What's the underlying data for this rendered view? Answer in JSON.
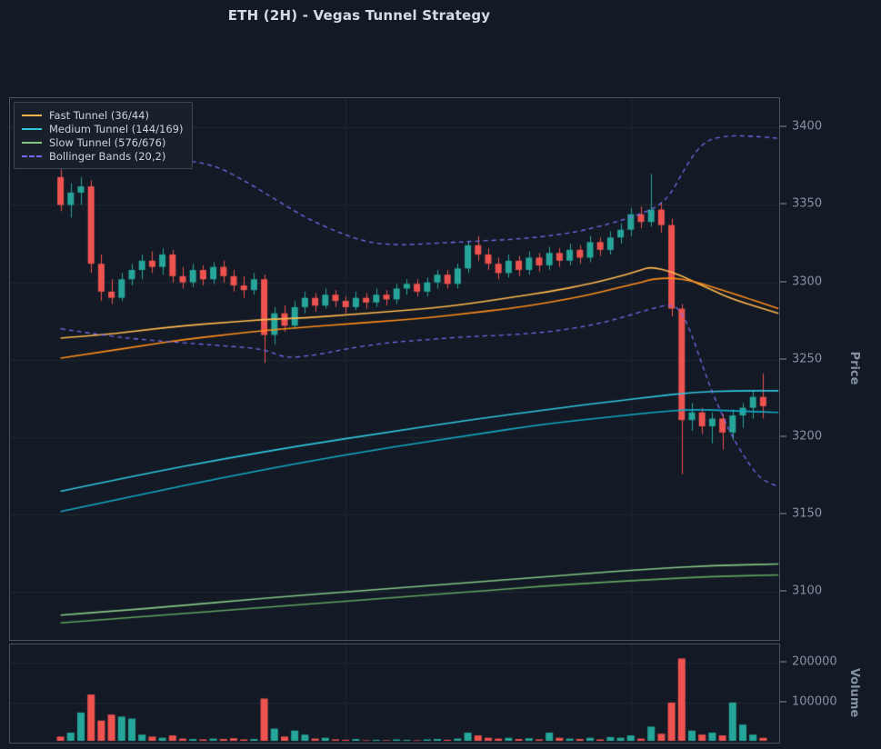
{
  "title": "ETH (2H) - Vegas Tunnel Strategy",
  "colors": {
    "bg": "#131a25",
    "panel_border": "#4a5260",
    "grid": "#212937",
    "title": "#d6dce6",
    "tick": "#8590a3",
    "legend_bg": "#1a2029",
    "legend_border": "#3e4654",
    "legend_text": "#ccd2de"
  },
  "legend": {
    "items": [
      {
        "label": "Fast Tunnel (36/44)",
        "color": "#ffb74d",
        "style": "solid"
      },
      {
        "label": "Medium Tunnel (144/169)",
        "color": "#2fc5de",
        "style": "solid"
      },
      {
        "label": "Slow Tunnel (576/676)",
        "color": "#85c785",
        "style": "solid"
      },
      {
        "label": "Bollinger Bands (20,2)",
        "color": "#7b68ee",
        "style": "dashed"
      }
    ]
  },
  "price_axis": {
    "label": "Price",
    "tick_labels": [
      "3400",
      "3350",
      "3300",
      "3250",
      "3200",
      "3150",
      "3100"
    ],
    "tick_values": [
      3400,
      3350,
      3300,
      3250,
      3200,
      3150,
      3100
    ]
  },
  "volume_axis": {
    "label": "Volume",
    "tick_labels": [
      "200000",
      "100000"
    ],
    "tick_values": [
      200000,
      100000
    ]
  },
  "chart_data": {
    "type": "candlestick",
    "title": "ETH (2H) - Vegas Tunnel Strategy",
    "symbol": "ETH",
    "interval": "2H",
    "ylabel": "Price",
    "ylabel_volume": "Volume",
    "price_ylim": [
      3069,
      3419
    ],
    "volume_ylim": [
      0,
      245000
    ],
    "up_color": "#26a69a",
    "down_color": "#ef5350",
    "vertical_grid_indices": [
      28,
      56
    ],
    "candles": {
      "open": [
        3368,
        3350,
        3358,
        3362,
        3312,
        3294,
        3290,
        3302,
        3308,
        3314,
        3310,
        3318,
        3304,
        3300,
        3308,
        3302,
        3310,
        3304,
        3298,
        3295,
        3302,
        3266,
        3280,
        3272,
        3284,
        3290,
        3285,
        3292,
        3288,
        3284,
        3290,
        3287,
        3292,
        3289,
        3296,
        3299,
        3294,
        3300,
        3305,
        3299,
        3309,
        3324,
        3318,
        3312,
        3306,
        3314,
        3308,
        3316,
        3311,
        3319,
        3314,
        3321,
        3316,
        3326,
        3321,
        3329,
        3334,
        3344,
        3339,
        3347,
        3337,
        3283,
        3211,
        3216,
        3207,
        3212,
        3203,
        3214,
        3219,
        3226
      ],
      "high": [
        3373,
        3364,
        3368,
        3366,
        3318,
        3302,
        3306,
        3312,
        3318,
        3320,
        3322,
        3321,
        3310,
        3312,
        3311,
        3313,
        3314,
        3308,
        3304,
        3306,
        3305,
        3284,
        3285,
        3288,
        3294,
        3293,
        3296,
        3295,
        3291,
        3294,
        3293,
        3296,
        3295,
        3299,
        3302,
        3302,
        3303,
        3308,
        3308,
        3312,
        3327,
        3330,
        3322,
        3316,
        3318,
        3317,
        3320,
        3319,
        3323,
        3322,
        3325,
        3324,
        3330,
        3329,
        3333,
        3338,
        3348,
        3349,
        3370,
        3352,
        3341,
        3286,
        3222,
        3219,
        3216,
        3215,
        3218,
        3222,
        3230,
        3241
      ],
      "low": [
        3346,
        3342,
        3350,
        3306,
        3288,
        3286,
        3288,
        3298,
        3302,
        3306,
        3305,
        3300,
        3296,
        3297,
        3298,
        3299,
        3300,
        3294,
        3290,
        3292,
        3248,
        3260,
        3268,
        3270,
        3280,
        3281,
        3283,
        3284,
        3280,
        3282,
        3283,
        3284,
        3285,
        3286,
        3292,
        3291,
        3291,
        3296,
        3296,
        3296,
        3306,
        3314,
        3308,
        3302,
        3303,
        3304,
        3305,
        3307,
        3308,
        3310,
        3311,
        3312,
        3313,
        3317,
        3318,
        3325,
        3330,
        3335,
        3336,
        3332,
        3278,
        3176,
        3204,
        3202,
        3196,
        3192,
        3198,
        3206,
        3212,
        3212
      ],
      "close": [
        3350,
        3358,
        3362,
        3312,
        3294,
        3290,
        3302,
        3308,
        3314,
        3310,
        3318,
        3304,
        3300,
        3308,
        3302,
        3310,
        3304,
        3298,
        3295,
        3302,
        3266,
        3280,
        3272,
        3284,
        3290,
        3285,
        3292,
        3288,
        3284,
        3290,
        3287,
        3292,
        3289,
        3296,
        3299,
        3294,
        3300,
        3305,
        3299,
        3309,
        3324,
        3318,
        3312,
        3306,
        3314,
        3308,
        3316,
        3311,
        3319,
        3314,
        3321,
        3316,
        3326,
        3321,
        3329,
        3334,
        3344,
        3339,
        3347,
        3337,
        3283,
        3211,
        3216,
        3207,
        3212,
        3203,
        3214,
        3219,
        3226,
        3220
      ],
      "volume": [
        15000,
        25000,
        75000,
        120000,
        55000,
        70000,
        65000,
        60000,
        20000,
        15000,
        12000,
        18000,
        10000,
        9000,
        8000,
        10000,
        9000,
        11000,
        8000,
        9000,
        110000,
        35000,
        15000,
        30000,
        20000,
        10000,
        12000,
        8000,
        7000,
        9000,
        6000,
        7000,
        6000,
        8000,
        7000,
        6000,
        8000,
        9000,
        7000,
        10000,
        25000,
        18000,
        12000,
        10000,
        12000,
        9000,
        11000,
        8000,
        25000,
        12000,
        10000,
        9000,
        12000,
        8000,
        14000,
        12000,
        18000,
        10000,
        40000,
        22000,
        100000,
        210000,
        30000,
        20000,
        25000,
        18000,
        100000,
        45000,
        20000,
        12000
      ]
    },
    "overlays": [
      {
        "name": "fast-tunnel-ema36",
        "color": "#ffb74d",
        "width": 1.6,
        "points": [
          [
            0,
            3264
          ],
          [
            4,
            3266
          ],
          [
            8,
            3269
          ],
          [
            12,
            3272
          ],
          [
            16,
            3274
          ],
          [
            20,
            3276
          ],
          [
            24,
            3277
          ],
          [
            28,
            3279
          ],
          [
            32,
            3281
          ],
          [
            36,
            3283
          ],
          [
            40,
            3286
          ],
          [
            44,
            3290
          ],
          [
            48,
            3294
          ],
          [
            52,
            3299
          ],
          [
            55,
            3304
          ],
          [
            57,
            3308
          ],
          [
            58,
            3310
          ],
          [
            60,
            3307
          ],
          [
            62,
            3301
          ],
          [
            64,
            3295
          ],
          [
            66,
            3289
          ],
          [
            70.5,
            3280
          ]
        ]
      },
      {
        "name": "fast-tunnel-ema44",
        "color": "#ff8c1a",
        "width": 1.6,
        "points": [
          [
            0,
            3251
          ],
          [
            4,
            3255
          ],
          [
            8,
            3259
          ],
          [
            12,
            3263
          ],
          [
            16,
            3266
          ],
          [
            20,
            3269
          ],
          [
            24,
            3271
          ],
          [
            28,
            3273
          ],
          [
            32,
            3275
          ],
          [
            36,
            3277
          ],
          [
            40,
            3280
          ],
          [
            44,
            3283
          ],
          [
            48,
            3287
          ],
          [
            52,
            3292
          ],
          [
            55,
            3297
          ],
          [
            57,
            3300
          ],
          [
            58,
            3302
          ],
          [
            60,
            3303
          ],
          [
            62,
            3301
          ],
          [
            64,
            3297
          ],
          [
            66,
            3293
          ],
          [
            70.5,
            3283
          ]
        ]
      },
      {
        "name": "medium-tunnel-ema144",
        "color": "#2fc5de",
        "width": 1.6,
        "points": [
          [
            0,
            3165
          ],
          [
            8,
            3176
          ],
          [
            16,
            3186
          ],
          [
            24,
            3195
          ],
          [
            32,
            3203
          ],
          [
            40,
            3211
          ],
          [
            48,
            3218
          ],
          [
            54,
            3223
          ],
          [
            58,
            3226
          ],
          [
            62,
            3229
          ],
          [
            66,
            3230
          ],
          [
            70.5,
            3230
          ]
        ]
      },
      {
        "name": "medium-tunnel-ema169",
        "color": "#12a8c4",
        "width": 1.6,
        "points": [
          [
            0,
            3152
          ],
          [
            8,
            3163
          ],
          [
            16,
            3174
          ],
          [
            24,
            3184
          ],
          [
            32,
            3193
          ],
          [
            40,
            3201
          ],
          [
            48,
            3209
          ],
          [
            54,
            3213
          ],
          [
            58,
            3216
          ],
          [
            62,
            3218
          ],
          [
            66,
            3217
          ],
          [
            70.5,
            3216
          ]
        ]
      },
      {
        "name": "slow-tunnel-ema576",
        "color": "#85c785",
        "width": 1.6,
        "points": [
          [
            0,
            3085
          ],
          [
            10,
            3090
          ],
          [
            20,
            3096
          ],
          [
            30,
            3101
          ],
          [
            40,
            3106
          ],
          [
            50,
            3111
          ],
          [
            58,
            3115
          ],
          [
            64,
            3117
          ],
          [
            70.5,
            3118
          ]
        ]
      },
      {
        "name": "slow-tunnel-ema676",
        "color": "#5fa55f",
        "width": 1.6,
        "points": [
          [
            0,
            3080
          ],
          [
            10,
            3085
          ],
          [
            20,
            3090
          ],
          [
            30,
            3095
          ],
          [
            40,
            3100
          ],
          [
            50,
            3105
          ],
          [
            58,
            3108
          ],
          [
            64,
            3110
          ],
          [
            70.5,
            3111
          ]
        ]
      },
      {
        "name": "bollinger-upper",
        "color": "#7b68ee",
        "width": 1.3,
        "dash": [
          5,
          4
        ],
        "points": [
          [
            0,
            3382
          ],
          [
            4,
            3381
          ],
          [
            8,
            3380
          ],
          [
            12,
            3379
          ],
          [
            15,
            3376
          ],
          [
            18,
            3366
          ],
          [
            21,
            3354
          ],
          [
            24,
            3342
          ],
          [
            27,
            3333
          ],
          [
            30,
            3326
          ],
          [
            33,
            3324
          ],
          [
            36,
            3325
          ],
          [
            39,
            3326
          ],
          [
            42,
            3327
          ],
          [
            45,
            3328
          ],
          [
            48,
            3330
          ],
          [
            51,
            3333
          ],
          [
            54,
            3338
          ],
          [
            56,
            3342
          ],
          [
            58,
            3347
          ],
          [
            59,
            3351
          ],
          [
            60,
            3358
          ],
          [
            61,
            3370
          ],
          [
            62,
            3381
          ],
          [
            63,
            3389
          ],
          [
            64,
            3393
          ],
          [
            66,
            3395
          ],
          [
            69,
            3394
          ],
          [
            70.5,
            3393
          ]
        ]
      },
      {
        "name": "bollinger-lower",
        "color": "#7b68ee",
        "width": 1.3,
        "dash": [
          5,
          4
        ],
        "points": [
          [
            0,
            3270
          ],
          [
            4,
            3266
          ],
          [
            8,
            3263
          ],
          [
            12,
            3261
          ],
          [
            16,
            3259
          ],
          [
            20,
            3257
          ],
          [
            22,
            3251
          ],
          [
            25,
            3253
          ],
          [
            28,
            3257
          ],
          [
            32,
            3261
          ],
          [
            36,
            3263
          ],
          [
            40,
            3265
          ],
          [
            44,
            3266
          ],
          [
            48,
            3268
          ],
          [
            52,
            3272
          ],
          [
            55,
            3277
          ],
          [
            58,
            3283
          ],
          [
            60,
            3286
          ],
          [
            61,
            3281
          ],
          [
            62,
            3266
          ],
          [
            63,
            3247
          ],
          [
            64,
            3229
          ],
          [
            65,
            3214
          ],
          [
            66,
            3200
          ],
          [
            67,
            3189
          ],
          [
            68,
            3179
          ],
          [
            69,
            3172
          ],
          [
            70.5,
            3168
          ]
        ]
      }
    ]
  }
}
